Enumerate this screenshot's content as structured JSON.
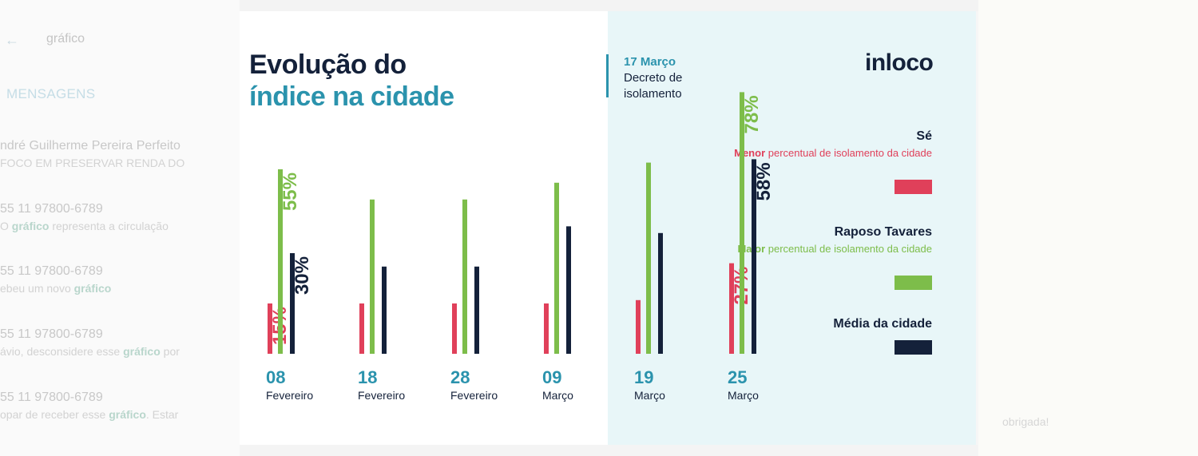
{
  "background_app": {
    "search_text": "gráfico",
    "section": "MENSAGENS",
    "messages": [
      {
        "title": "ndré Guilherme Pereira Perfeito",
        "sub": "FOCO EM PRESERVAR RENDA DO",
        "highlight": ""
      },
      {
        "title": "55 11 97800-6789",
        "sub": "O ",
        "highlight": "gráfico",
        "sub_after": " representa a circulação"
      },
      {
        "title": "55 11 97800-6789",
        "sub": "ebeu um novo ",
        "highlight": "gráfico",
        "sub_after": ""
      },
      {
        "title": "55 11 97800-6789",
        "sub": "ávio, desconsidere esse ",
        "highlight": "gráfico",
        "sub_after": " por"
      },
      {
        "title": "55 11 97800-6789",
        "sub": "opar de receber esse ",
        "highlight": "gráfico",
        "sub_after": ". Estar"
      }
    ],
    "right_text": "obrigada!"
  },
  "header": {
    "title_line1": "Evolução do",
    "title_line2": "índice na cidade",
    "brand": "inloco"
  },
  "decree": {
    "date": "17 Março",
    "text": "Decreto de isolamento"
  },
  "legend": [
    {
      "name": "Sé",
      "desc_bold": "Menor",
      "desc_rest": " percentual de isolamento da cidade",
      "color": "#e0405a"
    },
    {
      "name": "Raposo Tavares",
      "desc_bold": "Maior",
      "desc_rest": " percentual de isolamento da cidade",
      "color": "#7dbd4a"
    },
    {
      "name": "Média da cidade",
      "desc_bold": "",
      "desc_rest": "",
      "color": "#14213a"
    }
  ],
  "colors": {
    "se": "#e0405a",
    "raposo": "#7dbd4a",
    "media": "#14213a",
    "accent": "#2b93ad",
    "shade": "#e8f6f8"
  },
  "chart_data": {
    "type": "bar",
    "categories": [
      {
        "day": "08",
        "month": "Fevereiro"
      },
      {
        "day": "18",
        "month": "Fevereiro"
      },
      {
        "day": "28",
        "month": "Fevereiro"
      },
      {
        "day": "09",
        "month": "Março"
      },
      {
        "day": "19",
        "month": "Março"
      },
      {
        "day": "25",
        "month": "Março"
      }
    ],
    "series": [
      {
        "name": "Sé",
        "values": [
          15,
          15,
          15,
          15,
          16,
          27
        ],
        "labels": [
          "15%",
          "",
          "",
          "",
          "",
          "27%"
        ]
      },
      {
        "name": "Raposo Tavares",
        "values": [
          55,
          46,
          46,
          51,
          57,
          78
        ],
        "labels": [
          "55%",
          "",
          "",
          "",
          "",
          "78%"
        ]
      },
      {
        "name": "Média da cidade",
        "values": [
          30,
          26,
          26,
          38,
          36,
          58
        ],
        "labels": [
          "30%",
          "",
          "",
          "",
          "",
          "58%"
        ]
      }
    ],
    "ylim": [
      0,
      78
    ],
    "grid": false
  }
}
